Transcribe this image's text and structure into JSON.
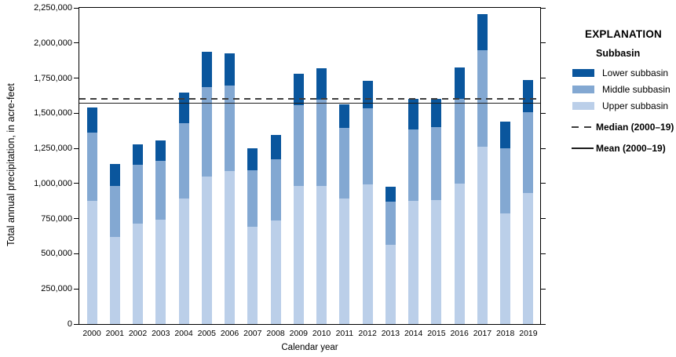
{
  "chart_data": {
    "type": "bar",
    "stacked": true,
    "title": "",
    "xlabel": "Calendar year",
    "ylabel": "Total annual precipitation, in acre-feet",
    "ylim": [
      0,
      2250000
    ],
    "y_tick_interval": 250000,
    "y_tick_labels": [
      "0",
      "250,000",
      "500,000",
      "750,000",
      "1,000,000",
      "1,250,000",
      "1,500,000",
      "1,750,000",
      "2,000,000",
      "2,250,000"
    ],
    "grid": false,
    "legend_position": "right",
    "categories": [
      "2000",
      "2001",
      "2002",
      "2003",
      "2004",
      "2005",
      "2006",
      "2007",
      "2008",
      "2009",
      "2010",
      "2011",
      "2012",
      "2013",
      "2014",
      "2015",
      "2016",
      "2017",
      "2018",
      "2019"
    ],
    "series": [
      {
        "name": "Lower subbasin",
        "color": "#0a569d",
        "values": [
          180000,
          155000,
          145000,
          145000,
          220000,
          250000,
          225000,
          155000,
          170000,
          220000,
          225000,
          170000,
          195000,
          105000,
          215000,
          205000,
          225000,
          255000,
          190000,
          230000
        ]
      },
      {
        "name": "Middle subbasin",
        "color": "#83a8d2",
        "values": [
          485000,
          365000,
          420000,
          415000,
          535000,
          635000,
          610000,
          405000,
          440000,
          575000,
          615000,
          500000,
          540000,
          305000,
          510000,
          515000,
          600000,
          690000,
          465000,
          575000
        ]
      },
      {
        "name": "Upper subbasin",
        "color": "#bbcfe9",
        "values": [
          875000,
          620000,
          715000,
          745000,
          895000,
          1050000,
          1090000,
          690000,
          735000,
          985000,
          980000,
          895000,
          995000,
          565000,
          875000,
          885000,
          1000000,
          1260000,
          785000,
          930000
        ]
      }
    ],
    "stack_order_bottom_to_top": [
      "Upper subbasin",
      "Middle subbasin",
      "Lower subbasin"
    ],
    "reference_lines": [
      {
        "name": "Median (2000–19)",
        "value": 1600000,
        "style": "dashed",
        "color": "#3d3d3d"
      },
      {
        "name": "Mean (2000–19)",
        "value": 1570000,
        "style": "solid",
        "color": "#1c1c1c"
      }
    ]
  },
  "legend": {
    "title": "EXPLANATION",
    "subtitle": "Subbasin",
    "items": [
      {
        "label": "Lower subbasin",
        "color": "#0a569d"
      },
      {
        "label": "Middle subbasin",
        "color": "#83a8d2"
      },
      {
        "label": "Upper subbasin",
        "color": "#bbcfe9"
      }
    ],
    "median_label": "Median (2000–19)",
    "mean_label": "Mean (2000–19)"
  }
}
